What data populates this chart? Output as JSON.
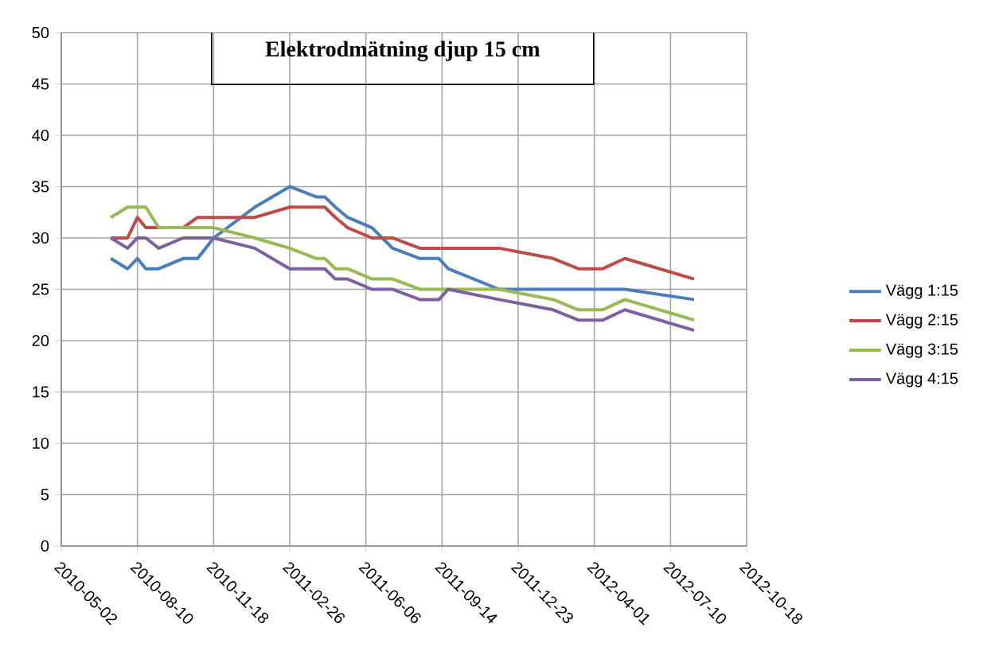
{
  "chart_data": {
    "type": "line",
    "title": "Elektrodmätning djup 15 cm",
    "x": [
      "2010-07-06",
      "2010-07-28",
      "2010-08-10",
      "2010-08-21",
      "2010-09-07",
      "2010-10-09",
      "2010-10-28",
      "2010-11-18",
      "2011-01-11",
      "2011-02-26",
      "2011-04-02",
      "2011-04-13",
      "2011-04-27",
      "2011-05-13",
      "2011-06-14",
      "2011-07-11",
      "2011-08-16",
      "2011-09-10",
      "2011-09-22",
      "2011-11-28",
      "2012-02-07",
      "2012-03-11",
      "2012-04-12",
      "2012-05-11",
      "2012-08-10"
    ],
    "series": [
      {
        "name": "Vägg 1:15",
        "color": "#4a7ebb",
        "values": [
          28,
          27,
          28,
          27,
          27,
          28,
          28,
          30,
          33,
          35,
          34,
          34,
          33,
          32,
          31,
          29,
          28,
          28,
          27,
          25,
          25,
          25,
          25,
          25,
          24
        ]
      },
      {
        "name": "Vägg 2:15",
        "color": "#be4b48",
        "values": [
          30,
          30,
          32,
          31,
          31,
          31,
          32,
          32,
          32,
          33,
          33,
          33,
          32,
          31,
          30,
          30,
          29,
          29,
          29,
          29,
          28,
          27,
          27,
          28,
          26
        ]
      },
      {
        "name": "Vägg 3:15",
        "color": "#98b954",
        "values": [
          32,
          33,
          33,
          33,
          31,
          31,
          31,
          31,
          30,
          29,
          28,
          28,
          27,
          27,
          26,
          26,
          25,
          25,
          25,
          25,
          24,
          23,
          23,
          24,
          22
        ]
      },
      {
        "name": "Vägg 4:15",
        "color": "#7d60a0",
        "values": [
          30,
          29,
          30,
          30,
          29,
          30,
          30,
          30,
          29,
          27,
          27,
          27,
          26,
          26,
          25,
          25,
          24,
          24,
          25,
          24,
          23,
          22,
          22,
          23,
          21
        ]
      }
    ],
    "xlim": [
      "2010-05-02",
      "2012-10-18"
    ],
    "xticks": [
      "2010-05-02",
      "2010-08-10",
      "2010-11-18",
      "2011-02-26",
      "2011-06-06",
      "2011-09-14",
      "2011-12-23",
      "2012-04-01",
      "2012-07-10",
      "2012-10-18"
    ],
    "ylim": [
      0,
      50
    ],
    "yticks": [
      0,
      5,
      10,
      15,
      20,
      25,
      30,
      35,
      40,
      45,
      50
    ],
    "grid": true,
    "legend": "right",
    "marker": "none",
    "line_style": "solid"
  }
}
